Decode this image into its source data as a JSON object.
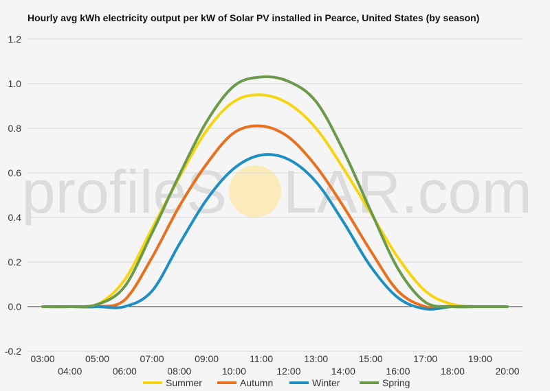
{
  "watermark": {
    "left": "profileS",
    "right": "LAR.com",
    "sun_color": "#fbe9b0"
  },
  "chart_data": {
    "type": "line",
    "title": "Hourly avg kWh electricity output per kW of Solar PV installed in Pearce, United States (by season)",
    "xlabel": "",
    "ylabel": "",
    "ylim": [
      -0.2,
      1.2
    ],
    "yticks": [
      -0.2,
      0.0,
      0.2,
      0.4,
      0.6,
      0.8,
      1.0,
      1.2
    ],
    "ytick_labels": [
      "-0.2",
      "0.0",
      "0.2",
      "0.4",
      "0.6",
      "0.8",
      "1.0",
      "1.2"
    ],
    "xticks_top": [
      "03:00",
      "05:00",
      "07:00",
      "09:00",
      "11:00",
      "13:00",
      "15:00",
      "17:00",
      "19:00"
    ],
    "xticks_bottom": [
      "04:00",
      "06:00",
      "08:00",
      "10:00",
      "12:00",
      "14:00",
      "16:00",
      "18:00",
      "20:00"
    ],
    "x": [
      3,
      4,
      5,
      6,
      7,
      8,
      9,
      10,
      11,
      12,
      13,
      14,
      15,
      16,
      17,
      18,
      19,
      20
    ],
    "grid": true,
    "legend_position": "bottom",
    "series": [
      {
        "name": "Summer",
        "color": "#f7d411",
        "values": [
          0,
          0,
          0.01,
          0.12,
          0.35,
          0.58,
          0.79,
          0.92,
          0.95,
          0.91,
          0.8,
          0.62,
          0.42,
          0.22,
          0.07,
          0.01,
          0,
          0
        ]
      },
      {
        "name": "Autumn",
        "color": "#e8711f",
        "values": [
          0,
          0,
          0,
          0.03,
          0.22,
          0.45,
          0.64,
          0.78,
          0.81,
          0.76,
          0.63,
          0.45,
          0.25,
          0.07,
          0.0,
          0,
          0,
          0
        ]
      },
      {
        "name": "Winter",
        "color": "#1f8fc3",
        "values": [
          0,
          0,
          0,
          0,
          0.07,
          0.28,
          0.48,
          0.62,
          0.68,
          0.66,
          0.56,
          0.38,
          0.18,
          0.04,
          -0.01,
          0,
          0,
          0
        ]
      },
      {
        "name": "Spring",
        "color": "#6b9a4b",
        "values": [
          0,
          0,
          0.01,
          0.09,
          0.33,
          0.59,
          0.83,
          0.99,
          1.03,
          1.01,
          0.92,
          0.7,
          0.43,
          0.17,
          0.02,
          0,
          0,
          0
        ]
      }
    ]
  }
}
